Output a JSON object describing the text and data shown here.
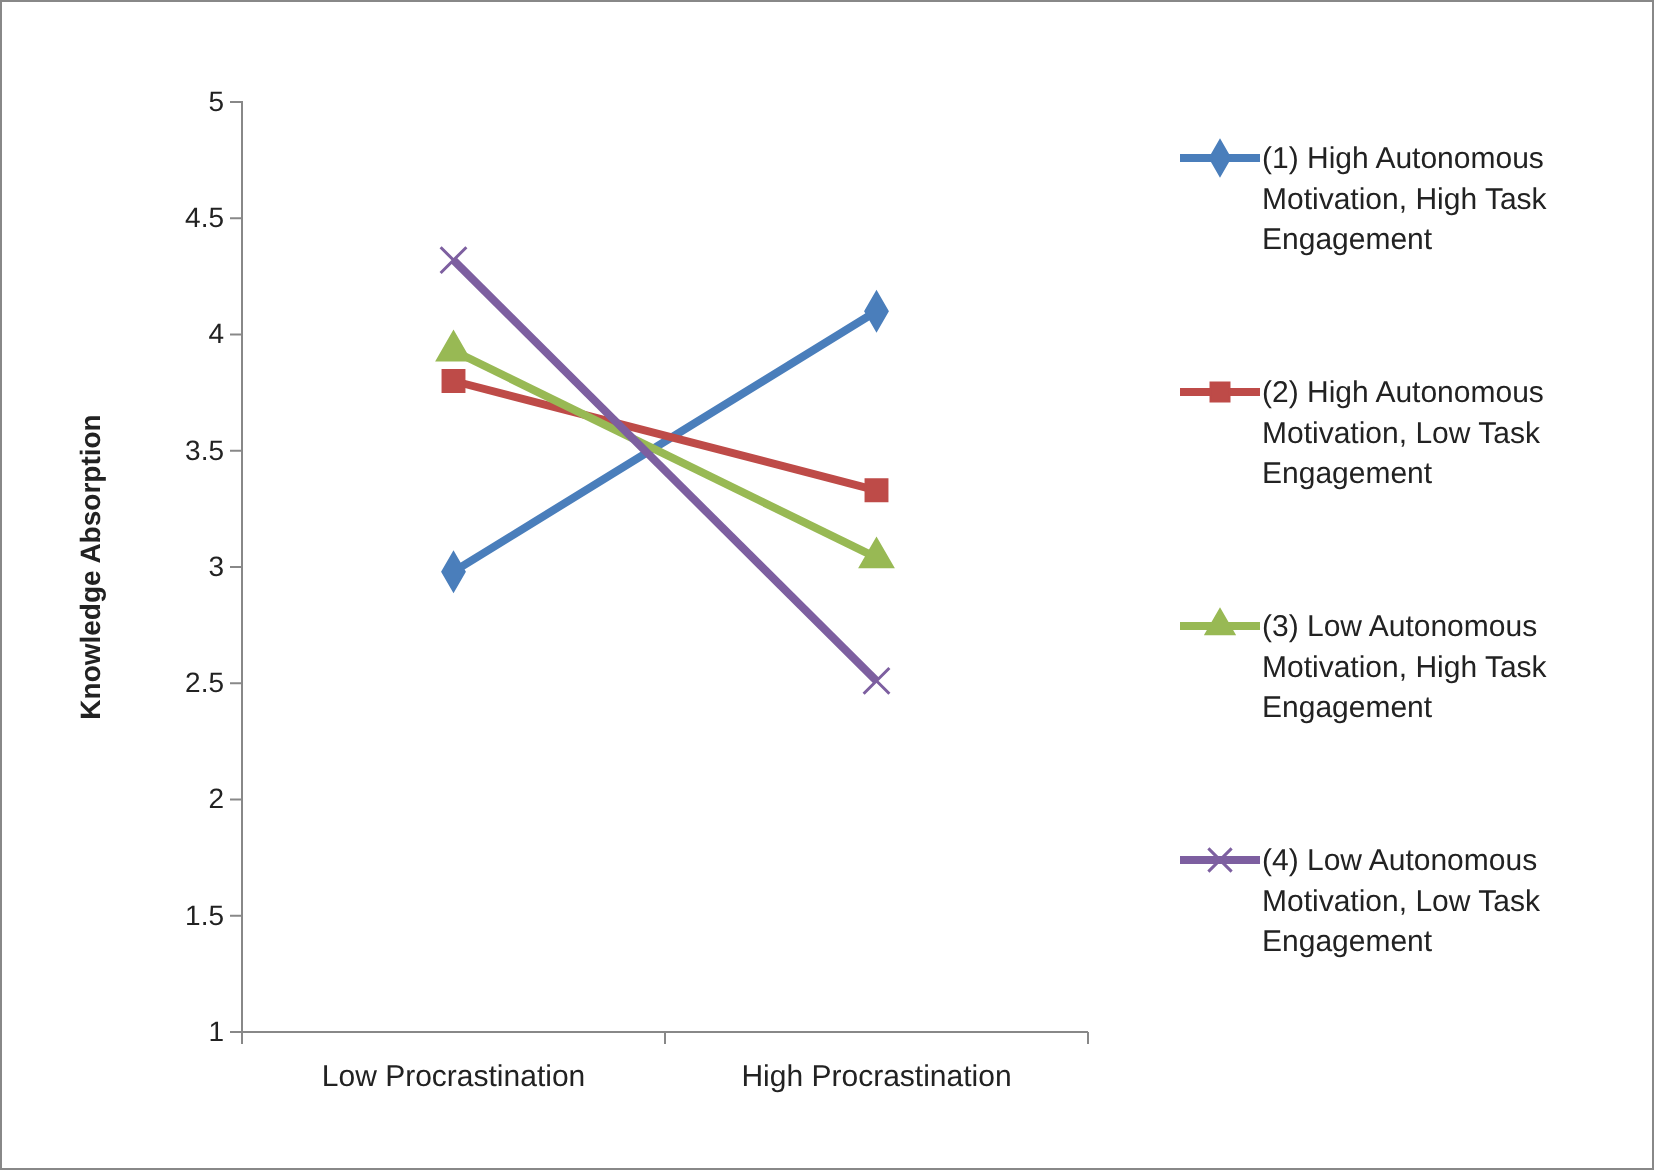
{
  "chart_data": {
    "type": "line",
    "ylabel": "Knowledge Absorption",
    "categories": [
      "Low Procrastination",
      "High Procrastination"
    ],
    "series": [
      {
        "name": "(1) High Autonomous Motivation, High Task Engagement",
        "color": "#4a7ebb",
        "marker": "diamond",
        "values": [
          2.98,
          4.1
        ]
      },
      {
        "name": "(2) High Autonomous Motivation, Low Task Engagement",
        "color": "#be4b48",
        "marker": "square",
        "values": [
          3.8,
          3.33
        ]
      },
      {
        "name": "(3) Low Autonomous Motivation, High Task Engagement",
        "color": "#98b954",
        "marker": "triangle",
        "values": [
          3.93,
          3.04
        ]
      },
      {
        "name": "(4) Low Autonomous Motivation, Low Task Engagement",
        "color": "#7d5fa0",
        "marker": "cross",
        "values": [
          4.32,
          2.51
        ]
      }
    ],
    "ylim": [
      1,
      5
    ],
    "yticks": [
      1,
      1.5,
      2,
      2.5,
      3,
      3.5,
      4,
      4.5,
      5
    ],
    "grid": false,
    "legend": "right"
  }
}
